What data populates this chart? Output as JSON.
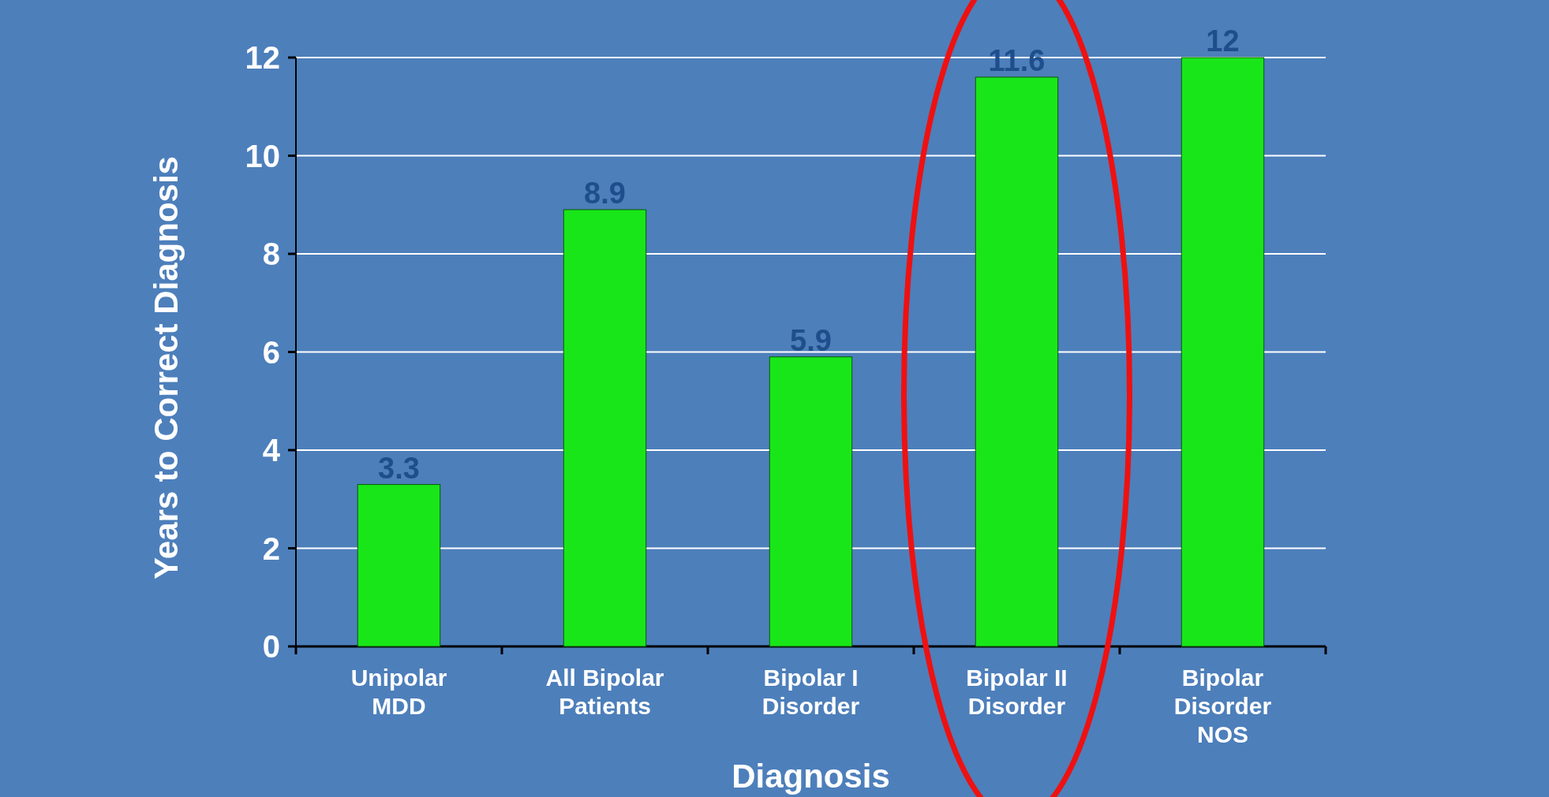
{
  "chart_data": {
    "type": "bar",
    "xlabel": "Diagnosis",
    "ylabel": "Years to Correct Diagnosis",
    "categories": [
      "Unipolar\nMDD",
      "All Bipolar\nPatients",
      "Bipolar I\nDisorder",
      "Bipolar II\nDisorder",
      "Bipolar\nDisorder\nNOS"
    ],
    "values": [
      3.3,
      8.9,
      5.9,
      11.6,
      12
    ],
    "color": "#19e619",
    "ylim": [
      0,
      12
    ],
    "yticks": [
      0,
      2,
      4,
      6,
      8,
      10,
      12
    ],
    "grid": "y",
    "data_labels": true
  }
}
